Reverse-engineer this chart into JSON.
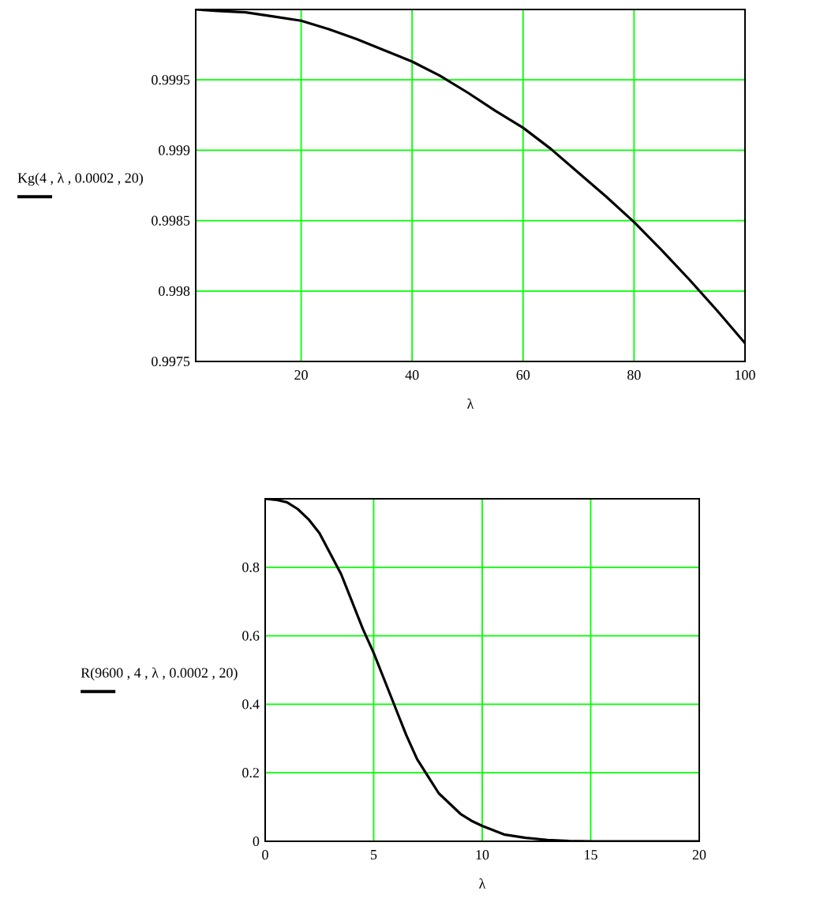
{
  "chart_data": [
    {
      "type": "line",
      "xlabel": "λ",
      "ylabel": "Kg(4 , λ , 0.0002 , 20)",
      "x": [
        1,
        5,
        10,
        15,
        20,
        25,
        30,
        35,
        40,
        45,
        50,
        55,
        60,
        65,
        70,
        75,
        80,
        85,
        90,
        95,
        100
      ],
      "values": [
        1.0,
        0.99999,
        0.99998,
        0.99995,
        0.99992,
        0.99986,
        0.99979,
        0.99971,
        0.99963,
        0.99953,
        0.99941,
        0.99928,
        0.99916,
        0.99901,
        0.99884,
        0.99867,
        0.99849,
        0.99829,
        0.99808,
        0.99786,
        0.99763
      ],
      "color": "#000000",
      "xlim": [
        1,
        100
      ],
      "ylim": [
        0.9975,
        1.0
      ],
      "xticks": [
        20,
        40,
        60,
        80,
        100
      ],
      "yticks": [
        0.9975,
        0.998,
        0.9985,
        0.999,
        0.9995
      ],
      "grid": true,
      "marker": "none",
      "line_style": "solid"
    },
    {
      "type": "line",
      "xlabel": "λ",
      "ylabel": "R(9600 , 4 , λ , 0.0002 , 20)",
      "x": [
        0,
        0.5,
        1,
        1.5,
        2,
        2.5,
        3,
        3.5,
        4,
        4.5,
        5,
        5.5,
        6,
        6.5,
        7,
        7.5,
        8,
        8.5,
        9,
        9.5,
        10,
        11,
        12,
        13,
        14,
        15,
        20
      ],
      "values": [
        1.0,
        0.997,
        0.99,
        0.97,
        0.94,
        0.9,
        0.84,
        0.78,
        0.7,
        0.62,
        0.55,
        0.47,
        0.39,
        0.31,
        0.24,
        0.19,
        0.14,
        0.11,
        0.08,
        0.06,
        0.045,
        0.02,
        0.01,
        0.004,
        0.001,
        0,
        0
      ],
      "color": "#000000",
      "xlim": [
        0,
        20
      ],
      "ylim": [
        0,
        1.0
      ],
      "xticks": [
        0,
        5,
        10,
        15,
        20
      ],
      "yticks": [
        0,
        0.2,
        0.4,
        0.6,
        0.8
      ],
      "grid": true,
      "marker": "none",
      "line_style": "solid"
    }
  ]
}
